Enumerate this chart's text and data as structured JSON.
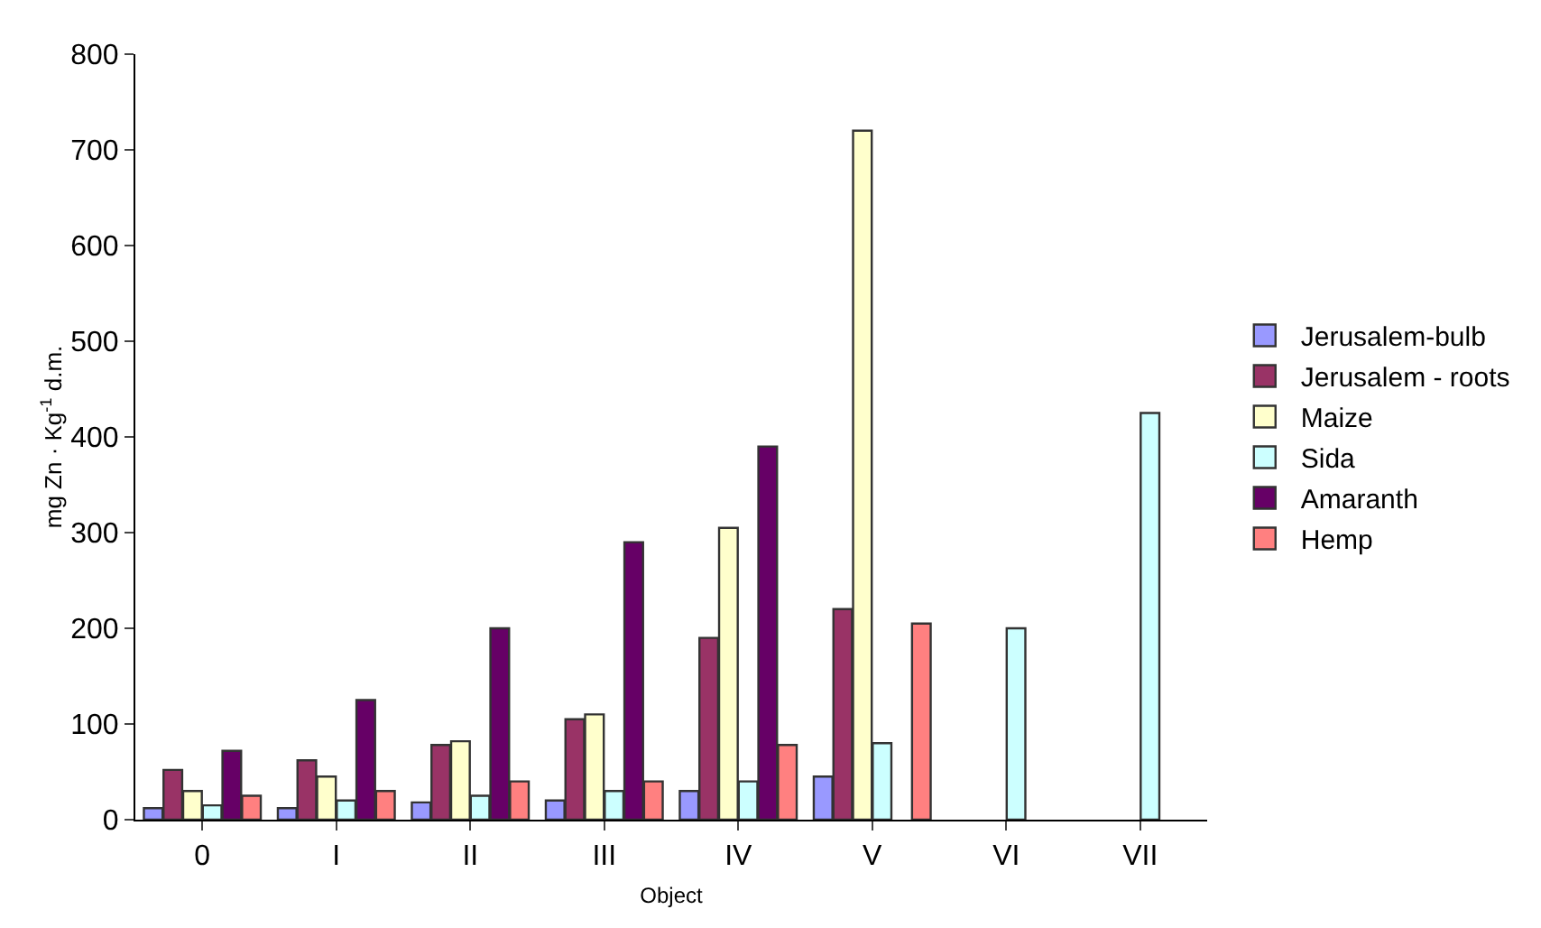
{
  "chart_data": {
    "type": "bar",
    "xlabel": "Object",
    "ylabel": "mg Zn · Kg$^{-1}$ d.m.",
    "categories": [
      "0",
      "I",
      "II",
      "III",
      "IV",
      "V",
      "VI",
      "VII"
    ],
    "series": [
      {
        "name": "Jerusalem-bulb",
        "color": "#9999ff",
        "values": [
          12,
          12,
          18,
          20,
          30,
          45,
          null,
          null
        ]
      },
      {
        "name": "Jerusalem - roots",
        "color": "#993366",
        "values": [
          52,
          62,
          78,
          105,
          190,
          220,
          null,
          null
        ]
      },
      {
        "name": "Maize",
        "color": "#ffffcc",
        "values": [
          30,
          45,
          82,
          110,
          305,
          720,
          null,
          null
        ]
      },
      {
        "name": "Sida",
        "color": "#ccffff",
        "values": [
          15,
          20,
          25,
          30,
          40,
          80,
          200,
          425
        ]
      },
      {
        "name": "Amaranth",
        "color": "#660066",
        "values": [
          72,
          125,
          200,
          290,
          390,
          null,
          null,
          null
        ]
      },
      {
        "name": "Hemp",
        "color": "#ff8080",
        "values": [
          25,
          30,
          40,
          40,
          78,
          205,
          null,
          null
        ]
      }
    ],
    "ylim": [
      0,
      800
    ],
    "yticks": [
      0,
      100,
      200,
      300,
      400,
      500,
      600,
      700,
      800
    ],
    "grid": false,
    "legend": "right"
  }
}
